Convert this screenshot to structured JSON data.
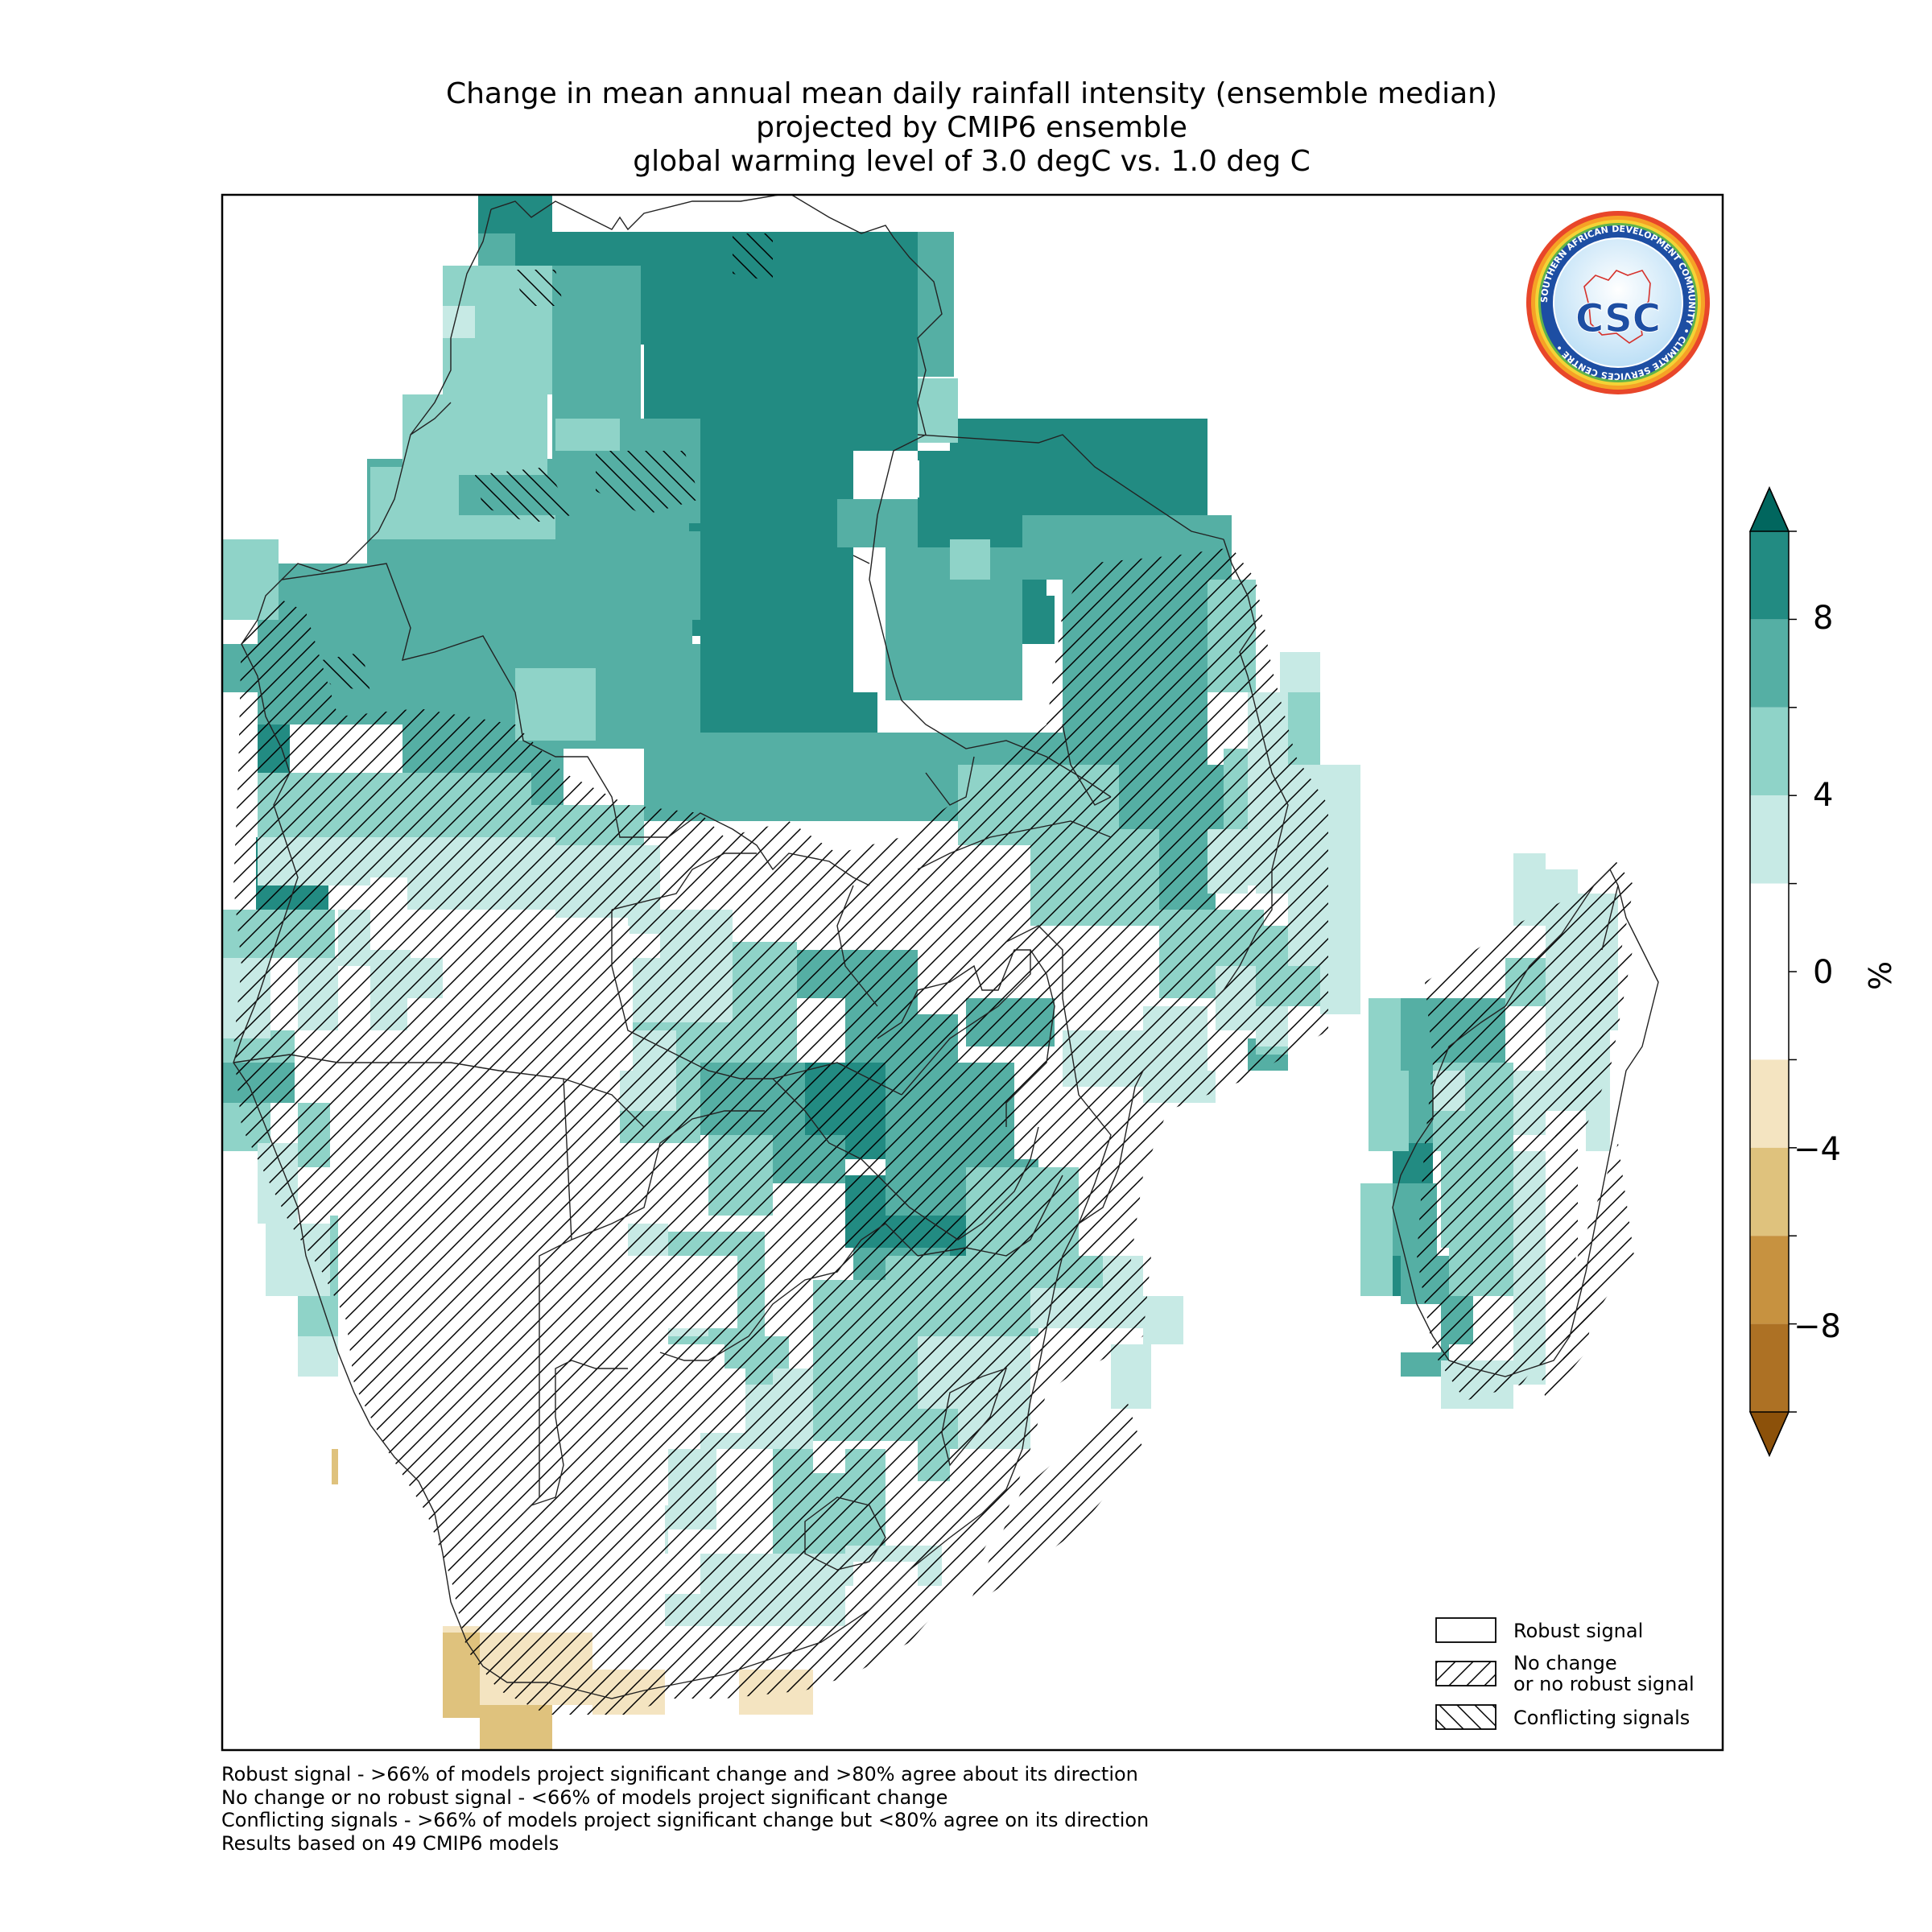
{
  "title": {
    "line1": "Change in mean annual mean daily rainfall intensity (ensemble median)",
    "line2": "projected by CMIP6 ensemble",
    "line3": "global warming level of 3.0 degC vs. 1.0 deg C"
  },
  "colorbar": {
    "unit": "%",
    "tick_labels": [
      "8",
      "4",
      "0",
      "−4",
      "−8"
    ],
    "bins": [
      {
        "range": [
          8,
          10
        ],
        "color": "#228b82"
      },
      {
        "range": [
          6,
          8
        ],
        "color": "#55afa4"
      },
      {
        "range": [
          4,
          6
        ],
        "color": "#8fd3c8"
      },
      {
        "range": [
          2,
          4
        ],
        "color": "#c7eae5"
      },
      {
        "range": [
          -2,
          2
        ],
        "color": "#ffffff"
      },
      {
        "range": [
          -4,
          -2
        ],
        "color": "#f4e4c1"
      },
      {
        "range": [
          -6,
          -4
        ],
        "color": "#dfc27d"
      },
      {
        "range": [
          -8,
          -6
        ],
        "color": "#c79240"
      },
      {
        "range": [
          -10,
          -8
        ],
        "color": "#ad7124"
      }
    ],
    "extend_high_color": "#01665e",
    "extend_low_color": "#8c510a"
  },
  "legend": {
    "items": [
      {
        "label": "Robust signal",
        "hatch": "none"
      },
      {
        "label": "No change",
        "label2": "or no robust signal",
        "hatch": "forward"
      },
      {
        "label": "Conflicting signals",
        "hatch": "back"
      }
    ]
  },
  "notes": [
    "Robust signal - >66% of models project significant change and >80% agree about its direction",
    "No change or no robust signal - <66% of models project significant change",
    "Conflicting signals - >66% of models project significant change but <80% agree on its direction",
    "Results based on 49 CMIP6 models"
  ],
  "logo": {
    "main_text": "CSC",
    "ring_text": "SOUTHERN AFRICAN DEVELOPMENT COMMUNITY • CLIMATE SERVICES CENTRE •"
  }
}
